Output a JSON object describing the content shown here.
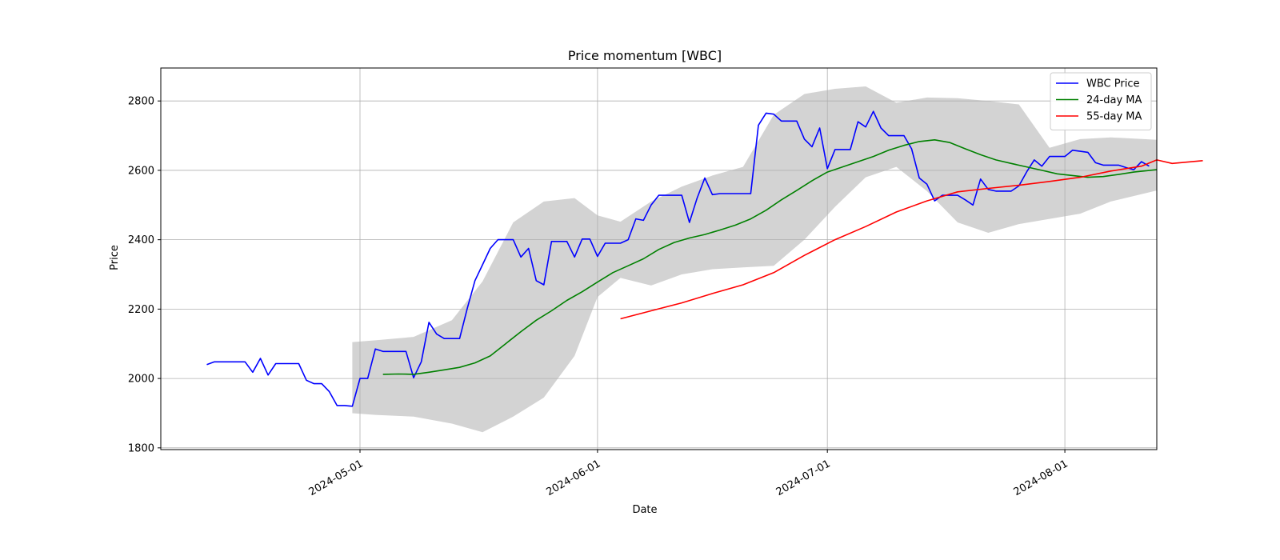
{
  "chart_data": {
    "type": "line",
    "title": "Price momentum [WBC]",
    "xlabel": "Date",
    "ylabel": "Price",
    "xlim": [
      "2024-04-05",
      "2024-08-13"
    ],
    "ylim": [
      1795,
      2895
    ],
    "x_ticks": [
      "2024-05-01",
      "2024-06-01",
      "2024-07-01",
      "2024-08-01"
    ],
    "y_ticks": [
      1800,
      2000,
      2200,
      2400,
      2600,
      2800
    ],
    "grid": true,
    "legend_position": "top-right",
    "series": [
      {
        "name": "WBC Price",
        "color": "#0000ff",
        "points": [
          [
            "2024-04-11",
            2040
          ],
          [
            "2024-04-12",
            2048
          ],
          [
            "2024-04-15",
            2048
          ],
          [
            "2024-04-16",
            2048
          ],
          [
            "2024-04-17",
            2018
          ],
          [
            "2024-04-18",
            2058
          ],
          [
            "2024-04-19",
            2010
          ],
          [
            "2024-04-20",
            2043
          ],
          [
            "2024-04-22",
            2043
          ],
          [
            "2024-04-23",
            2043
          ],
          [
            "2024-04-24",
            1995
          ],
          [
            "2024-04-25",
            1985
          ],
          [
            "2024-04-26",
            1985
          ],
          [
            "2024-04-27",
            1962
          ],
          [
            "2024-04-28",
            1922
          ],
          [
            "2024-04-29",
            1922
          ],
          [
            "2024-04-30",
            1920
          ],
          [
            "2024-05-01",
            2000
          ],
          [
            "2024-05-02",
            2000
          ],
          [
            "2024-05-03",
            2085
          ],
          [
            "2024-05-04",
            2078
          ],
          [
            "2024-05-06",
            2078
          ],
          [
            "2024-05-07",
            2078
          ],
          [
            "2024-05-08",
            2002
          ],
          [
            "2024-05-09",
            2048
          ],
          [
            "2024-05-10",
            2162
          ],
          [
            "2024-05-11",
            2128
          ],
          [
            "2024-05-12",
            2115
          ],
          [
            "2024-05-13",
            2115
          ],
          [
            "2024-05-14",
            2115
          ],
          [
            "2024-05-15",
            2202
          ],
          [
            "2024-05-16",
            2282
          ],
          [
            "2024-05-17",
            2328
          ],
          [
            "2024-05-18",
            2375
          ],
          [
            "2024-05-19",
            2400
          ],
          [
            "2024-05-20",
            2400
          ],
          [
            "2024-05-21",
            2400
          ],
          [
            "2024-05-22",
            2350
          ],
          [
            "2024-05-23",
            2375
          ],
          [
            "2024-05-24",
            2282
          ],
          [
            "2024-05-25",
            2270
          ],
          [
            "2024-05-26",
            2395
          ],
          [
            "2024-05-27",
            2395
          ],
          [
            "2024-05-28",
            2395
          ],
          [
            "2024-05-29",
            2350
          ],
          [
            "2024-05-30",
            2402
          ],
          [
            "2024-05-31",
            2402
          ],
          [
            "2024-06-01",
            2352
          ],
          [
            "2024-06-02",
            2390
          ],
          [
            "2024-06-03",
            2390
          ],
          [
            "2024-06-04",
            2390
          ],
          [
            "2024-06-05",
            2400
          ],
          [
            "2024-06-06",
            2460
          ],
          [
            "2024-06-07",
            2456
          ],
          [
            "2024-06-08",
            2500
          ],
          [
            "2024-06-09",
            2528
          ],
          [
            "2024-06-11",
            2528
          ],
          [
            "2024-06-12",
            2528
          ],
          [
            "2024-06-13",
            2450
          ],
          [
            "2024-06-14",
            2520
          ],
          [
            "2024-06-15",
            2578
          ],
          [
            "2024-06-16",
            2530
          ],
          [
            "2024-06-17",
            2533
          ],
          [
            "2024-06-18",
            2533
          ],
          [
            "2024-06-19",
            2533
          ],
          [
            "2024-06-20",
            2533
          ],
          [
            "2024-06-21",
            2533
          ],
          [
            "2024-06-22",
            2730
          ],
          [
            "2024-06-23",
            2765
          ],
          [
            "2024-06-24",
            2762
          ],
          [
            "2024-06-25",
            2742
          ],
          [
            "2024-06-26",
            2742
          ],
          [
            "2024-06-27",
            2742
          ],
          [
            "2024-06-28",
            2690
          ],
          [
            "2024-06-29",
            2668
          ],
          [
            "2024-06-30",
            2722
          ],
          [
            "2024-07-01",
            2605
          ],
          [
            "2024-07-02",
            2660
          ],
          [
            "2024-07-03",
            2660
          ],
          [
            "2024-07-04",
            2660
          ],
          [
            "2024-07-05",
            2740
          ],
          [
            "2024-07-06",
            2725
          ],
          [
            "2024-07-07",
            2770
          ],
          [
            "2024-07-08",
            2722
          ],
          [
            "2024-07-09",
            2700
          ],
          [
            "2024-07-10",
            2700
          ],
          [
            "2024-07-11",
            2700
          ],
          [
            "2024-07-12",
            2662
          ],
          [
            "2024-07-13",
            2578
          ],
          [
            "2024-07-14",
            2560
          ],
          [
            "2024-07-15",
            2512
          ],
          [
            "2024-07-16",
            2528
          ],
          [
            "2024-07-17",
            2528
          ],
          [
            "2024-07-18",
            2528
          ],
          [
            "2024-07-19",
            2515
          ],
          [
            "2024-07-20",
            2500
          ],
          [
            "2024-07-21",
            2575
          ],
          [
            "2024-07-22",
            2545
          ],
          [
            "2024-07-23",
            2540
          ],
          [
            "2024-07-24",
            2540
          ],
          [
            "2024-07-25",
            2540
          ],
          [
            "2024-07-26",
            2555
          ],
          [
            "2024-07-27",
            2595
          ],
          [
            "2024-07-28",
            2630
          ],
          [
            "2024-07-29",
            2612
          ],
          [
            "2024-07-30",
            2640
          ],
          [
            "2024-07-31",
            2640
          ],
          [
            "2024-08-01",
            2640
          ],
          [
            "2024-08-02",
            2658
          ],
          [
            "2024-08-03",
            2655
          ],
          [
            "2024-08-04",
            2652
          ],
          [
            "2024-08-05",
            2622
          ],
          [
            "2024-08-06",
            2615
          ],
          [
            "2024-08-07",
            2615
          ],
          [
            "2024-08-08",
            2615
          ],
          [
            "2024-08-09",
            2608
          ],
          [
            "2024-08-10",
            2602
          ],
          [
            "2024-08-11",
            2625
          ],
          [
            "2024-08-12",
            2612
          ]
        ]
      },
      {
        "name": "24-day MA",
        "color": "#008000",
        "points": [
          [
            "2024-05-04",
            2012
          ],
          [
            "2024-05-06",
            2013
          ],
          [
            "2024-05-08",
            2012
          ],
          [
            "2024-05-10",
            2018
          ],
          [
            "2024-05-12",
            2025
          ],
          [
            "2024-05-14",
            2032
          ],
          [
            "2024-05-16",
            2045
          ],
          [
            "2024-05-18",
            2065
          ],
          [
            "2024-05-20",
            2100
          ],
          [
            "2024-05-22",
            2135
          ],
          [
            "2024-05-24",
            2168
          ],
          [
            "2024-05-26",
            2195
          ],
          [
            "2024-05-28",
            2225
          ],
          [
            "2024-05-30",
            2250
          ],
          [
            "2024-06-01",
            2278
          ],
          [
            "2024-06-03",
            2305
          ],
          [
            "2024-06-05",
            2325
          ],
          [
            "2024-06-07",
            2345
          ],
          [
            "2024-06-09",
            2372
          ],
          [
            "2024-06-11",
            2392
          ],
          [
            "2024-06-13",
            2405
          ],
          [
            "2024-06-15",
            2415
          ],
          [
            "2024-06-17",
            2428
          ],
          [
            "2024-06-19",
            2442
          ],
          [
            "2024-06-21",
            2460
          ],
          [
            "2024-06-23",
            2485
          ],
          [
            "2024-06-25",
            2515
          ],
          [
            "2024-06-27",
            2542
          ],
          [
            "2024-06-29",
            2570
          ],
          [
            "2024-07-01",
            2595
          ],
          [
            "2024-07-03",
            2610
          ],
          [
            "2024-07-05",
            2625
          ],
          [
            "2024-07-07",
            2640
          ],
          [
            "2024-07-09",
            2658
          ],
          [
            "2024-07-11",
            2672
          ],
          [
            "2024-07-13",
            2683
          ],
          [
            "2024-07-15",
            2688
          ],
          [
            "2024-07-17",
            2680
          ],
          [
            "2024-07-19",
            2662
          ],
          [
            "2024-07-21",
            2645
          ],
          [
            "2024-07-23",
            2630
          ],
          [
            "2024-07-25",
            2620
          ],
          [
            "2024-07-27",
            2610
          ],
          [
            "2024-07-29",
            2600
          ],
          [
            "2024-07-31",
            2590
          ],
          [
            "2024-08-02",
            2585
          ],
          [
            "2024-08-04",
            2580
          ],
          [
            "2024-08-06",
            2582
          ],
          [
            "2024-08-08",
            2588
          ],
          [
            "2024-08-10",
            2595
          ],
          [
            "2024-08-13",
            2602
          ]
        ]
      },
      {
        "name": "55-day MA",
        "color": "#ff0000",
        "points": [
          [
            "2024-06-04",
            2172
          ],
          [
            "2024-06-08",
            2195
          ],
          [
            "2024-06-12",
            2218
          ],
          [
            "2024-06-16",
            2245
          ],
          [
            "2024-06-20",
            2270
          ],
          [
            "2024-06-24",
            2305
          ],
          [
            "2024-06-28",
            2355
          ],
          [
            "2024-07-02",
            2400
          ],
          [
            "2024-07-06",
            2438
          ],
          [
            "2024-07-10",
            2480
          ],
          [
            "2024-07-14",
            2512
          ],
          [
            "2024-07-18",
            2538
          ],
          [
            "2024-07-22",
            2548
          ],
          [
            "2024-07-26",
            2557
          ],
          [
            "2024-07-30",
            2568
          ],
          [
            "2024-08-03",
            2580
          ],
          [
            "2024-08-07",
            2598
          ],
          [
            "2024-08-11",
            2612
          ],
          [
            "2024-08-15",
            2620
          ],
          [
            "2024-08-19",
            2628
          ],
          [
            "2024-08-13",
            2630
          ]
        ]
      }
    ],
    "band": {
      "color": "#d3d3d3",
      "upper": [
        [
          "2024-04-30",
          2105
        ],
        [
          "2024-05-03",
          2110
        ],
        [
          "2024-05-08",
          2120
        ],
        [
          "2024-05-13",
          2168
        ],
        [
          "2024-05-17",
          2280
        ],
        [
          "2024-05-21",
          2450
        ],
        [
          "2024-05-25",
          2510
        ],
        [
          "2024-05-29",
          2520
        ],
        [
          "2024-06-01",
          2470
        ],
        [
          "2024-06-04",
          2452
        ],
        [
          "2024-06-08",
          2510
        ],
        [
          "2024-06-12",
          2553
        ],
        [
          "2024-06-16",
          2585
        ],
        [
          "2024-06-20",
          2610
        ],
        [
          "2024-06-24",
          2760
        ],
        [
          "2024-06-28",
          2820
        ],
        [
          "2024-07-02",
          2835
        ],
        [
          "2024-07-06",
          2842
        ],
        [
          "2024-07-10",
          2795
        ],
        [
          "2024-07-14",
          2810
        ],
        [
          "2024-07-18",
          2808
        ],
        [
          "2024-07-22",
          2800
        ],
        [
          "2024-07-26",
          2790
        ],
        [
          "2024-07-30",
          2665
        ],
        [
          "2024-08-03",
          2690
        ],
        [
          "2024-08-07",
          2695
        ],
        [
          "2024-08-13",
          2688
        ]
      ],
      "lower": [
        [
          "2024-04-30",
          1900
        ],
        [
          "2024-05-03",
          1895
        ],
        [
          "2024-05-08",
          1890
        ],
        [
          "2024-05-13",
          1870
        ],
        [
          "2024-05-17",
          1845
        ],
        [
          "2024-05-21",
          1890
        ],
        [
          "2024-05-25",
          1945
        ],
        [
          "2024-05-29",
          2065
        ],
        [
          "2024-06-01",
          2235
        ],
        [
          "2024-06-04",
          2290
        ],
        [
          "2024-06-08",
          2268
        ],
        [
          "2024-06-12",
          2300
        ],
        [
          "2024-06-16",
          2315
        ],
        [
          "2024-06-20",
          2320
        ],
        [
          "2024-06-24",
          2325
        ],
        [
          "2024-06-28",
          2400
        ],
        [
          "2024-07-02",
          2495
        ],
        [
          "2024-07-06",
          2580
        ],
        [
          "2024-07-10",
          2610
        ],
        [
          "2024-07-14",
          2540
        ],
        [
          "2024-07-18",
          2450
        ],
        [
          "2024-07-22",
          2420
        ],
        [
          "2024-07-26",
          2445
        ],
        [
          "2024-07-30",
          2460
        ],
        [
          "2024-08-03",
          2475
        ],
        [
          "2024-08-07",
          2510
        ],
        [
          "2024-08-13",
          2542
        ]
      ]
    }
  }
}
